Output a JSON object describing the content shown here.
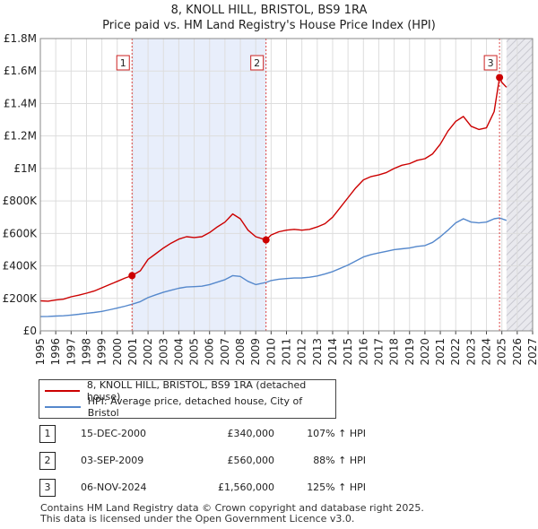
{
  "header": {
    "title": "8, KNOLL HILL, BRISTOL, BS9 1RA",
    "subtitle": "Price paid vs. HM Land Registry's House Price Index (HPI)"
  },
  "chart_data": {
    "type": "line",
    "ylim": [
      0,
      1800000
    ],
    "xlim": [
      1995,
      2027
    ],
    "y_ticks": [
      {
        "value": 0,
        "label": "£0"
      },
      {
        "value": 200000,
        "label": "£200K"
      },
      {
        "value": 400000,
        "label": "£400K"
      },
      {
        "value": 600000,
        "label": "£600K"
      },
      {
        "value": 800000,
        "label": "£800K"
      },
      {
        "value": 1000000,
        "label": "£1M"
      },
      {
        "value": 1200000,
        "label": "£1.2M"
      },
      {
        "value": 1400000,
        "label": "£1.4M"
      },
      {
        "value": 1600000,
        "label": "£1.6M"
      },
      {
        "value": 1800000,
        "label": "£1.8M"
      }
    ],
    "x_ticks": [
      "1995",
      "1996",
      "1997",
      "1998",
      "1999",
      "2000",
      "2001",
      "2002",
      "2003",
      "2004",
      "2005",
      "2006",
      "2007",
      "2008",
      "2009",
      "2010",
      "2011",
      "2012",
      "2013",
      "2014",
      "2015",
      "2016",
      "2017",
      "2018",
      "2019",
      "2020",
      "2021",
      "2022",
      "2023",
      "2024",
      "2025",
      "2026",
      "2027"
    ],
    "shaded_ranges": [
      [
        2000.96,
        2009.67
      ]
    ],
    "forecast_start": 2025.3,
    "series": [
      {
        "name": "8, KNOLL HILL, BRISTOL, BS9 1RA (detached house)",
        "color": "#cc0000",
        "x": [
          1995.0,
          1995.5,
          1996.0,
          1996.5,
          1997.0,
          1997.5,
          1998.0,
          1998.5,
          1999.0,
          1999.5,
          2000.0,
          2000.5,
          2000.96,
          2001.5,
          2002.0,
          2002.5,
          2003.0,
          2003.5,
          2004.0,
          2004.5,
          2005.0,
          2005.5,
          2006.0,
          2006.5,
          2007.0,
          2007.5,
          2008.0,
          2008.5,
          2009.0,
          2009.67,
          2010.0,
          2010.5,
          2011.0,
          2011.5,
          2012.0,
          2012.5,
          2013.0,
          2013.5,
          2014.0,
          2014.5,
          2015.0,
          2015.5,
          2016.0,
          2016.5,
          2017.0,
          2017.5,
          2018.0,
          2018.5,
          2019.0,
          2019.5,
          2020.0,
          2020.5,
          2021.0,
          2021.5,
          2022.0,
          2022.5,
          2023.0,
          2023.5,
          2024.0,
          2024.5,
          2024.85,
          2025.0,
          2025.3
        ],
        "values": [
          185000,
          183000,
          190000,
          195000,
          210000,
          220000,
          232000,
          245000,
          265000,
          285000,
          305000,
          325000,
          340000,
          370000,
          440000,
          475000,
          510000,
          540000,
          565000,
          580000,
          575000,
          580000,
          605000,
          640000,
          670000,
          720000,
          690000,
          620000,
          580000,
          560000,
          590000,
          610000,
          620000,
          625000,
          620000,
          625000,
          640000,
          660000,
          700000,
          760000,
          820000,
          880000,
          930000,
          950000,
          960000,
          975000,
          1000000,
          1020000,
          1030000,
          1050000,
          1060000,
          1090000,
          1150000,
          1230000,
          1290000,
          1320000,
          1260000,
          1240000,
          1250000,
          1350000,
          1560000,
          1530000,
          1500000
        ]
      },
      {
        "name": "HPI: Average price, detached house, City of Bristol",
        "color": "#5588cc",
        "x": [
          1995.0,
          1995.5,
          1996.0,
          1996.5,
          1997.0,
          1997.5,
          1998.0,
          1998.5,
          1999.0,
          1999.5,
          2000.0,
          2000.5,
          2000.96,
          2001.5,
          2002.0,
          2002.5,
          2003.0,
          2003.5,
          2004.0,
          2004.5,
          2005.0,
          2005.5,
          2006.0,
          2006.5,
          2007.0,
          2007.5,
          2008.0,
          2008.5,
          2009.0,
          2009.67,
          2010.0,
          2010.5,
          2011.0,
          2011.5,
          2012.0,
          2012.5,
          2013.0,
          2013.5,
          2014.0,
          2014.5,
          2015.0,
          2015.5,
          2016.0,
          2016.5,
          2017.0,
          2017.5,
          2018.0,
          2018.5,
          2019.0,
          2019.5,
          2020.0,
          2020.5,
          2021.0,
          2021.5,
          2022.0,
          2022.5,
          2023.0,
          2023.5,
          2024.0,
          2024.5,
          2024.85,
          2025.0,
          2025.3
        ],
        "values": [
          88000,
          89000,
          91000,
          93000,
          97000,
          102000,
          108000,
          113000,
          120000,
          130000,
          140000,
          152000,
          164000,
          180000,
          205000,
          222000,
          238000,
          250000,
          262000,
          270000,
          272000,
          275000,
          285000,
          300000,
          315000,
          340000,
          335000,
          305000,
          285000,
          298000,
          310000,
          318000,
          322000,
          325000,
          326000,
          330000,
          338000,
          350000,
          365000,
          385000,
          405000,
          430000,
          455000,
          470000,
          480000,
          490000,
          500000,
          505000,
          510000,
          520000,
          525000,
          545000,
          580000,
          620000,
          665000,
          690000,
          670000,
          665000,
          670000,
          690000,
          695000,
          690000,
          680000
        ]
      }
    ],
    "sales": [
      {
        "label": "1",
        "x": 2000.96,
        "value": 340000
      },
      {
        "label": "2",
        "x": 2009.67,
        "value": 560000
      },
      {
        "label": "3",
        "x": 2024.85,
        "value": 1560000
      }
    ]
  },
  "legend": {
    "property_label": "8, KNOLL HILL, BRISTOL, BS9 1RA (detached house)",
    "hpi_label": "HPI: Average price, detached house, City of Bristol",
    "property_color": "#cc0000",
    "hpi_color": "#5588cc"
  },
  "transactions": [
    {
      "num": "1",
      "date": "15-DEC-2000",
      "price": "£340,000",
      "hpi": "107% ↑ HPI"
    },
    {
      "num": "2",
      "date": "03-SEP-2009",
      "price": "£560,000",
      "hpi": "88% ↑ HPI"
    },
    {
      "num": "3",
      "date": "06-NOV-2024",
      "price": "£1,560,000",
      "hpi": "125% ↑ HPI"
    }
  ],
  "footer": {
    "line1": "Contains HM Land Registry data © Crown copyright and database right 2025.",
    "line2": "This data is licensed under the Open Government Licence v3.0."
  }
}
